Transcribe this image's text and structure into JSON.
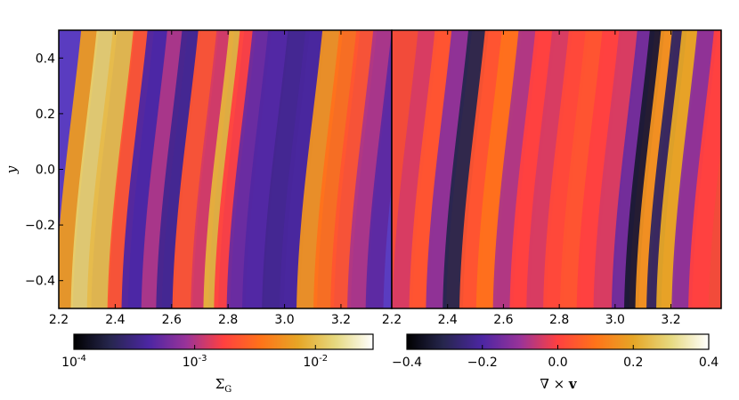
{
  "chart_data": [
    {
      "type": "heatmap",
      "panel": "left",
      "title": "",
      "xlabel": "",
      "ylabel": "y",
      "xlim": [
        2.2,
        3.38
      ],
      "ylim": [
        -0.5,
        0.5
      ],
      "x_ticks": [
        2.2,
        2.4,
        2.6,
        2.8,
        3.0,
        3.2
      ],
      "x_tick_labels": [
        "2.2",
        "2.4",
        "2.6",
        "2.8",
        "3.0",
        "3.2"
      ],
      "y_ticks": [
        0.4,
        0.2,
        0.0,
        -0.2,
        -0.4
      ],
      "y_tick_labels": [
        "0.4",
        "0.2",
        "0.0",
        "−0.2",
        "−0.4"
      ],
      "colormap": "CMRmap",
      "colorbar": {
        "label": "Σ",
        "label_sub": "G",
        "scale": "log",
        "range": [
          0.0001,
          0.03
        ],
        "ticks": [
          0.0001,
          0.001,
          0.01
        ],
        "tick_bases": [
          "10",
          "10",
          "10"
        ],
        "tick_exps": [
          "-4",
          "-3",
          "-2"
        ]
      },
      "bands": [
        {
          "x": 2.24,
          "level": 0.72
        },
        {
          "x": 2.3,
          "level": 0.85
        },
        {
          "x": 2.36,
          "level": 0.8
        },
        {
          "x": 2.43,
          "level": 0.55
        },
        {
          "x": 2.48,
          "level": 0.25
        },
        {
          "x": 2.55,
          "level": 0.4
        },
        {
          "x": 2.6,
          "level": 0.22
        },
        {
          "x": 2.66,
          "level": 0.55
        },
        {
          "x": 2.72,
          "level": 0.45
        },
        {
          "x": 2.76,
          "level": 0.78
        },
        {
          "x": 2.8,
          "level": 0.5
        },
        {
          "x": 2.85,
          "level": 0.3
        },
        {
          "x": 2.91,
          "level": 0.26
        },
        {
          "x": 2.98,
          "level": 0.22
        },
        {
          "x": 3.04,
          "level": 0.24
        },
        {
          "x": 3.1,
          "level": 0.7
        },
        {
          "x": 3.16,
          "level": 0.62
        },
        {
          "x": 3.22,
          "level": 0.55
        },
        {
          "x": 3.28,
          "level": 0.4
        },
        {
          "x": 3.34,
          "level": 0.28
        }
      ]
    },
    {
      "type": "heatmap",
      "panel": "right",
      "title": "",
      "xlabel": "",
      "ylabel": "",
      "xlim": [
        2.2,
        3.38
      ],
      "ylim": [
        -0.5,
        0.5
      ],
      "x_ticks": [
        2.2,
        2.4,
        2.6,
        2.8,
        3.0,
        3.2
      ],
      "x_tick_labels": [
        "2.2",
        "2.4",
        "2.6",
        "2.8",
        "3.0",
        "3.2"
      ],
      "colormap": "CMRmap",
      "colorbar": {
        "label": "∇ × ",
        "label_bold": "v",
        "scale": "linear",
        "range": [
          -0.4,
          0.4
        ],
        "ticks": [
          -0.4,
          -0.2,
          0.0,
          0.2,
          0.4
        ],
        "tick_labels": [
          "−0.4",
          "−0.2",
          "0.0",
          "0.2",
          "0.4"
        ]
      },
      "bands": [
        {
          "x": 2.26,
          "level": 0.45
        },
        {
          "x": 2.32,
          "level": 0.55
        },
        {
          "x": 2.38,
          "level": 0.35
        },
        {
          "x": 2.44,
          "level": 0.12
        },
        {
          "x": 2.5,
          "level": 0.55
        },
        {
          "x": 2.56,
          "level": 0.62
        },
        {
          "x": 2.62,
          "level": 0.4
        },
        {
          "x": 2.68,
          "level": 0.5
        },
        {
          "x": 2.74,
          "level": 0.45
        },
        {
          "x": 2.8,
          "level": 0.52
        },
        {
          "x": 2.86,
          "level": 0.55
        },
        {
          "x": 2.92,
          "level": 0.5
        },
        {
          "x": 2.98,
          "level": 0.45
        },
        {
          "x": 3.04,
          "level": 0.3
        },
        {
          "x": 3.08,
          "level": 0.08
        },
        {
          "x": 3.12,
          "level": 0.7
        },
        {
          "x": 3.16,
          "level": 0.15
        },
        {
          "x": 3.2,
          "level": 0.75
        },
        {
          "x": 3.26,
          "level": 0.35
        },
        {
          "x": 3.32,
          "level": 0.5
        }
      ]
    }
  ]
}
